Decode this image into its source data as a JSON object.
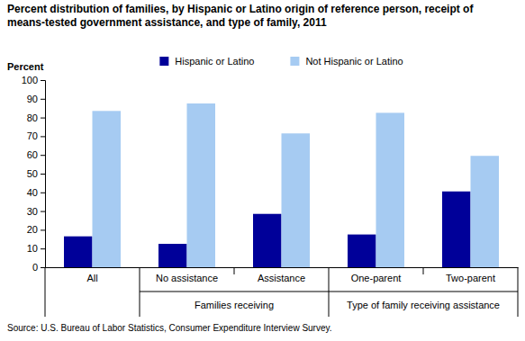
{
  "chart_data": {
    "type": "bar",
    "title": "Percent distribution of families, by Hispanic or Latino origin of reference person, receipt of means-tested government assistance, and type of family, 2011",
    "y_label": "Percent",
    "categories": [
      "All",
      "No assistance",
      "Assistance",
      "One-parent",
      "Two-parent"
    ],
    "category_groups": [
      {
        "label": "Families receiving",
        "members": [
          1,
          2
        ]
      },
      {
        "label": "Type of family receiving assistance",
        "members": [
          3,
          4
        ]
      }
    ],
    "series": [
      {
        "name": "Hispanic or Latino",
        "color": "#000099",
        "values": [
          16.5,
          12.5,
          28.5,
          17.5,
          40.5
        ]
      },
      {
        "name": "Not Hispanic or Latino",
        "color": "#a6cbf2",
        "values": [
          83.5,
          87.5,
          71.5,
          82.5,
          59.5
        ]
      }
    ],
    "ylim": [
      0,
      100
    ],
    "yticks": [
      0,
      10,
      20,
      30,
      40,
      50,
      60,
      70,
      80,
      90,
      100
    ],
    "grid": false,
    "legend": "top",
    "source": "Source: U.S. Bureau of Labor Statistics, Consumer Expenditure Interview Survey."
  }
}
